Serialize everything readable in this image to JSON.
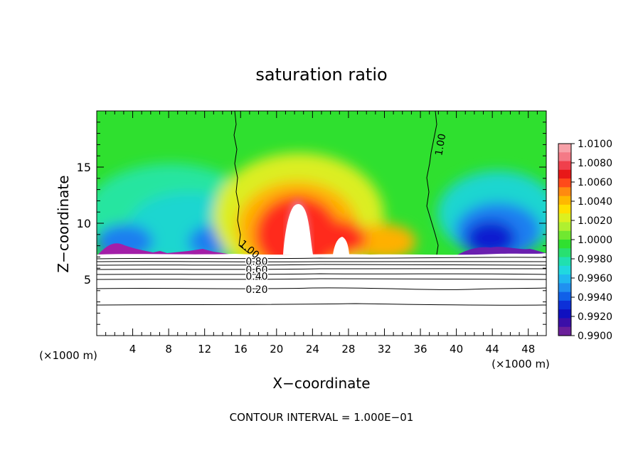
{
  "chart_data": {
    "type": "heatmap",
    "title": "saturation ratio",
    "xlabel": "X−coordinate",
    "ylabel": "Z−coordinate",
    "x_unit_left": "(×1000 m)",
    "x_unit_right": "(×1000 m)",
    "xlim": [
      0,
      50
    ],
    "ylim": [
      0,
      20
    ],
    "x_ticks": [
      "4",
      "8",
      "12",
      "16",
      "20",
      "24",
      "28",
      "32",
      "36",
      "40",
      "44",
      "48"
    ],
    "y_ticks": [
      "5",
      "10",
      "15"
    ],
    "colorbar_labels": [
      "1.0100",
      "1.0080",
      "1.0060",
      "1.0040",
      "1.0020",
      "1.0000",
      "0.9980",
      "0.9960",
      "0.9940",
      "0.9920",
      "0.9900"
    ],
    "colorbar_range": [
      0.99,
      1.01
    ],
    "contour_labels": [
      {
        "text": "1.00",
        "x": 38.2,
        "y": 17.0
      },
      {
        "text": "1.00",
        "x": 17.0,
        "y": 7.7
      },
      {
        "text": "0.80",
        "x": 17.8,
        "y": 6.6
      },
      {
        "text": "0.60",
        "x": 17.8,
        "y": 5.9
      },
      {
        "text": "0.40",
        "x": 17.8,
        "y": 5.3
      },
      {
        "text": "0.20",
        "x": 17.8,
        "y": 4.1
      }
    ],
    "footnote": "CONTOUR INTERVAL = 1.000E−01"
  },
  "colors": {
    "background": "#ffffff",
    "ink": "#000000"
  }
}
